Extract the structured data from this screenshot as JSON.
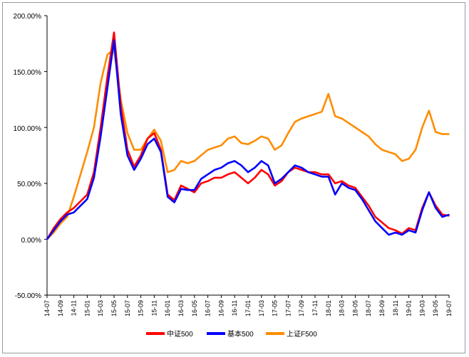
{
  "chart_data": {
    "type": "line",
    "title": "",
    "xlabel": "",
    "ylabel": "",
    "x_tick_labels": [
      "14-07",
      "14-09",
      "14-11",
      "15-01",
      "15-03",
      "15-05",
      "15-07",
      "15-09",
      "15-11",
      "16-01",
      "16-03",
      "16-05",
      "16-07",
      "16-09",
      "16-11",
      "17-01",
      "17-03",
      "17-05",
      "17-07",
      "17-09",
      "17-11",
      "18-01",
      "18-03",
      "18-05",
      "18-07",
      "18-09",
      "18-11",
      "19-01",
      "19-03",
      "19-05",
      "19-07"
    ],
    "y_tick_labels": [
      "200.00%",
      "150.00%",
      "100.00%",
      "50.00%",
      "0.00%",
      "-50.00%"
    ],
    "ylim": [
      -50,
      200
    ],
    "y_unit": "%",
    "grid": false,
    "legend_position": "bottom",
    "colors": {
      "中证500": "#ff0000",
      "基本500": "#0000ff",
      "上证F500": "#ff8c00"
    },
    "series": [
      {
        "name": "中证500",
        "x": [
          "14-07",
          "14-08",
          "14-09",
          "14-10",
          "14-11",
          "14-12",
          "15-01",
          "15-02",
          "15-03",
          "15-04",
          "15-05",
          "15-06",
          "15-07",
          "15-08",
          "15-09",
          "15-10",
          "15-11",
          "15-12",
          "16-01",
          "16-02",
          "16-03",
          "16-04",
          "16-05",
          "16-06",
          "16-07",
          "16-08",
          "16-09",
          "16-10",
          "16-11",
          "16-12",
          "17-01",
          "17-02",
          "17-03",
          "17-04",
          "17-05",
          "17-06",
          "17-07",
          "17-08",
          "17-09",
          "17-10",
          "17-11",
          "17-12",
          "18-01",
          "18-02",
          "18-03",
          "18-04",
          "18-05",
          "18-06",
          "18-07",
          "18-08",
          "18-09",
          "18-10",
          "18-11",
          "18-12",
          "19-01",
          "19-02",
          "19-03",
          "19-04",
          "19-05",
          "19-06",
          "19-07"
        ],
        "values": [
          0,
          10,
          18,
          24,
          28,
          34,
          40,
          60,
          100,
          145,
          185,
          120,
          80,
          65,
          75,
          90,
          95,
          80,
          40,
          35,
          48,
          45,
          42,
          50,
          52,
          55,
          55,
          58,
          60,
          55,
          50,
          55,
          62,
          58,
          48,
          52,
          60,
          64,
          62,
          60,
          60,
          58,
          58,
          50,
          52,
          48,
          46,
          38,
          30,
          20,
          15,
          10,
          8,
          5,
          10,
          8,
          28,
          42,
          30,
          22,
          21
        ],
        "unit": "%"
      },
      {
        "name": "基本500",
        "x": [
          "14-07",
          "14-08",
          "14-09",
          "14-10",
          "14-11",
          "14-12",
          "15-01",
          "15-02",
          "15-03",
          "15-04",
          "15-05",
          "15-06",
          "15-07",
          "15-08",
          "15-09",
          "15-10",
          "15-11",
          "15-12",
          "16-01",
          "16-02",
          "16-03",
          "16-04",
          "16-05",
          "16-06",
          "16-07",
          "16-08",
          "16-09",
          "16-10",
          "16-11",
          "16-12",
          "17-01",
          "17-02",
          "17-03",
          "17-04",
          "17-05",
          "17-06",
          "17-07",
          "17-08",
          "17-09",
          "17-10",
          "17-11",
          "17-12",
          "18-01",
          "18-02",
          "18-03",
          "18-04",
          "18-05",
          "18-06",
          "18-07",
          "18-08",
          "18-09",
          "18-10",
          "18-11",
          "18-12",
          "19-01",
          "19-02",
          "19-03",
          "19-04",
          "19-05",
          "19-06",
          "19-07"
        ],
        "values": [
          0,
          8,
          16,
          22,
          24,
          30,
          36,
          55,
          92,
          135,
          178,
          112,
          75,
          62,
          72,
          85,
          90,
          78,
          38,
          33,
          45,
          44,
          44,
          54,
          58,
          62,
          64,
          68,
          70,
          66,
          60,
          64,
          70,
          66,
          50,
          54,
          60,
          66,
          64,
          60,
          58,
          56,
          56,
          40,
          50,
          46,
          44,
          36,
          26,
          16,
          10,
          4,
          6,
          4,
          8,
          6,
          26,
          42,
          28,
          20,
          22
        ],
        "unit": "%"
      },
      {
        "name": "上证F500",
        "x": [
          "14-07",
          "14-08",
          "14-09",
          "14-10",
          "14-11",
          "14-12",
          "15-01",
          "15-02",
          "15-03",
          "15-04",
          "15-05",
          "15-06",
          "15-07",
          "15-08",
          "15-09",
          "15-10",
          "15-11",
          "15-12",
          "16-01",
          "16-02",
          "16-03",
          "16-04",
          "16-05",
          "16-06",
          "16-07",
          "16-08",
          "16-09",
          "16-10",
          "16-11",
          "16-12",
          "17-01",
          "17-02",
          "17-03",
          "17-04",
          "17-05",
          "17-06",
          "17-07",
          "17-08",
          "17-09",
          "17-10",
          "17-11",
          "17-12",
          "18-01",
          "18-02",
          "18-03",
          "18-04",
          "18-05",
          "18-06",
          "18-07",
          "18-08",
          "18-09",
          "18-10",
          "18-11",
          "18-12",
          "19-01",
          "19-02",
          "19-03",
          "19-04",
          "19-05",
          "19-06",
          "19-07"
        ],
        "values": [
          0,
          6,
          14,
          20,
          38,
          58,
          78,
          100,
          140,
          165,
          170,
          125,
          95,
          80,
          80,
          90,
          98,
          88,
          60,
          62,
          70,
          68,
          70,
          75,
          80,
          82,
          84,
          90,
          92,
          86,
          85,
          88,
          92,
          90,
          80,
          84,
          95,
          105,
          108,
          110,
          112,
          114,
          130,
          110,
          108,
          104,
          100,
          96,
          92,
          85,
          80,
          78,
          76,
          70,
          72,
          80,
          100,
          115,
          96,
          94,
          94
        ],
        "unit": "%"
      }
    ]
  }
}
